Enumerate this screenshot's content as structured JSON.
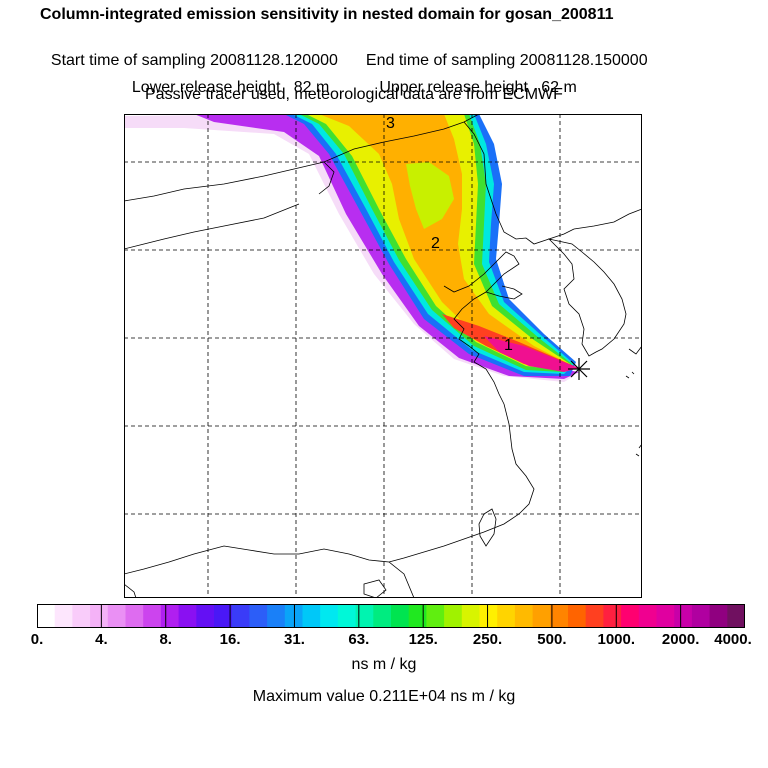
{
  "header": {
    "title": "Column-integrated emission sensitivity in nested domain for gosan_200811",
    "start_time": "Start time of sampling 20081128.120000",
    "end_time": "End time of sampling 20081128.150000",
    "lower_release": "Lower release height   82 m",
    "upper_release": "Upper release height   62 m",
    "tracer_info": "Passive tracer used, meteorological data are from ECMWF"
  },
  "chart_data": {
    "type": "heatmap",
    "title": "Column-integrated emission sensitivity in nested domain for gosan_200811",
    "colorbar": {
      "ticks": [
        "0.",
        "4.",
        "8.",
        "16.",
        "31.",
        "63.",
        "125.",
        "250.",
        "500.",
        "1000.",
        "2000.",
        "4000."
      ],
      "units": "ns m / kg",
      "colors": [
        "#ffffff",
        "#fde6fd",
        "#f9ccfa",
        "#f4b2f7",
        "#ea90f4",
        "#de6cf0",
        "#cc44ee",
        "#b01ff0",
        "#8a10f2",
        "#6410f4",
        "#4a18f6",
        "#3a3cf8",
        "#2c5ef8",
        "#1a80f8",
        "#0aa4f8",
        "#00c8f8",
        "#00e8f0",
        "#00f8d8",
        "#00f4b0",
        "#00ec80",
        "#00e450",
        "#20e820",
        "#60ee10",
        "#a0f200",
        "#d8f400",
        "#fff000",
        "#ffd400",
        "#ffba00",
        "#ffa000",
        "#ff8400",
        "#ff6400",
        "#ff4020",
        "#ff2040",
        "#ff0070",
        "#f00090",
        "#e000a0",
        "#c800a8",
        "#b000a0",
        "#900080",
        "#701060"
      ]
    },
    "maximum_label": "Maximum value  0.211E+04 ns m / kg",
    "plume_markers": [
      "3",
      "2",
      "1"
    ],
    "receptor": "Gosan"
  }
}
